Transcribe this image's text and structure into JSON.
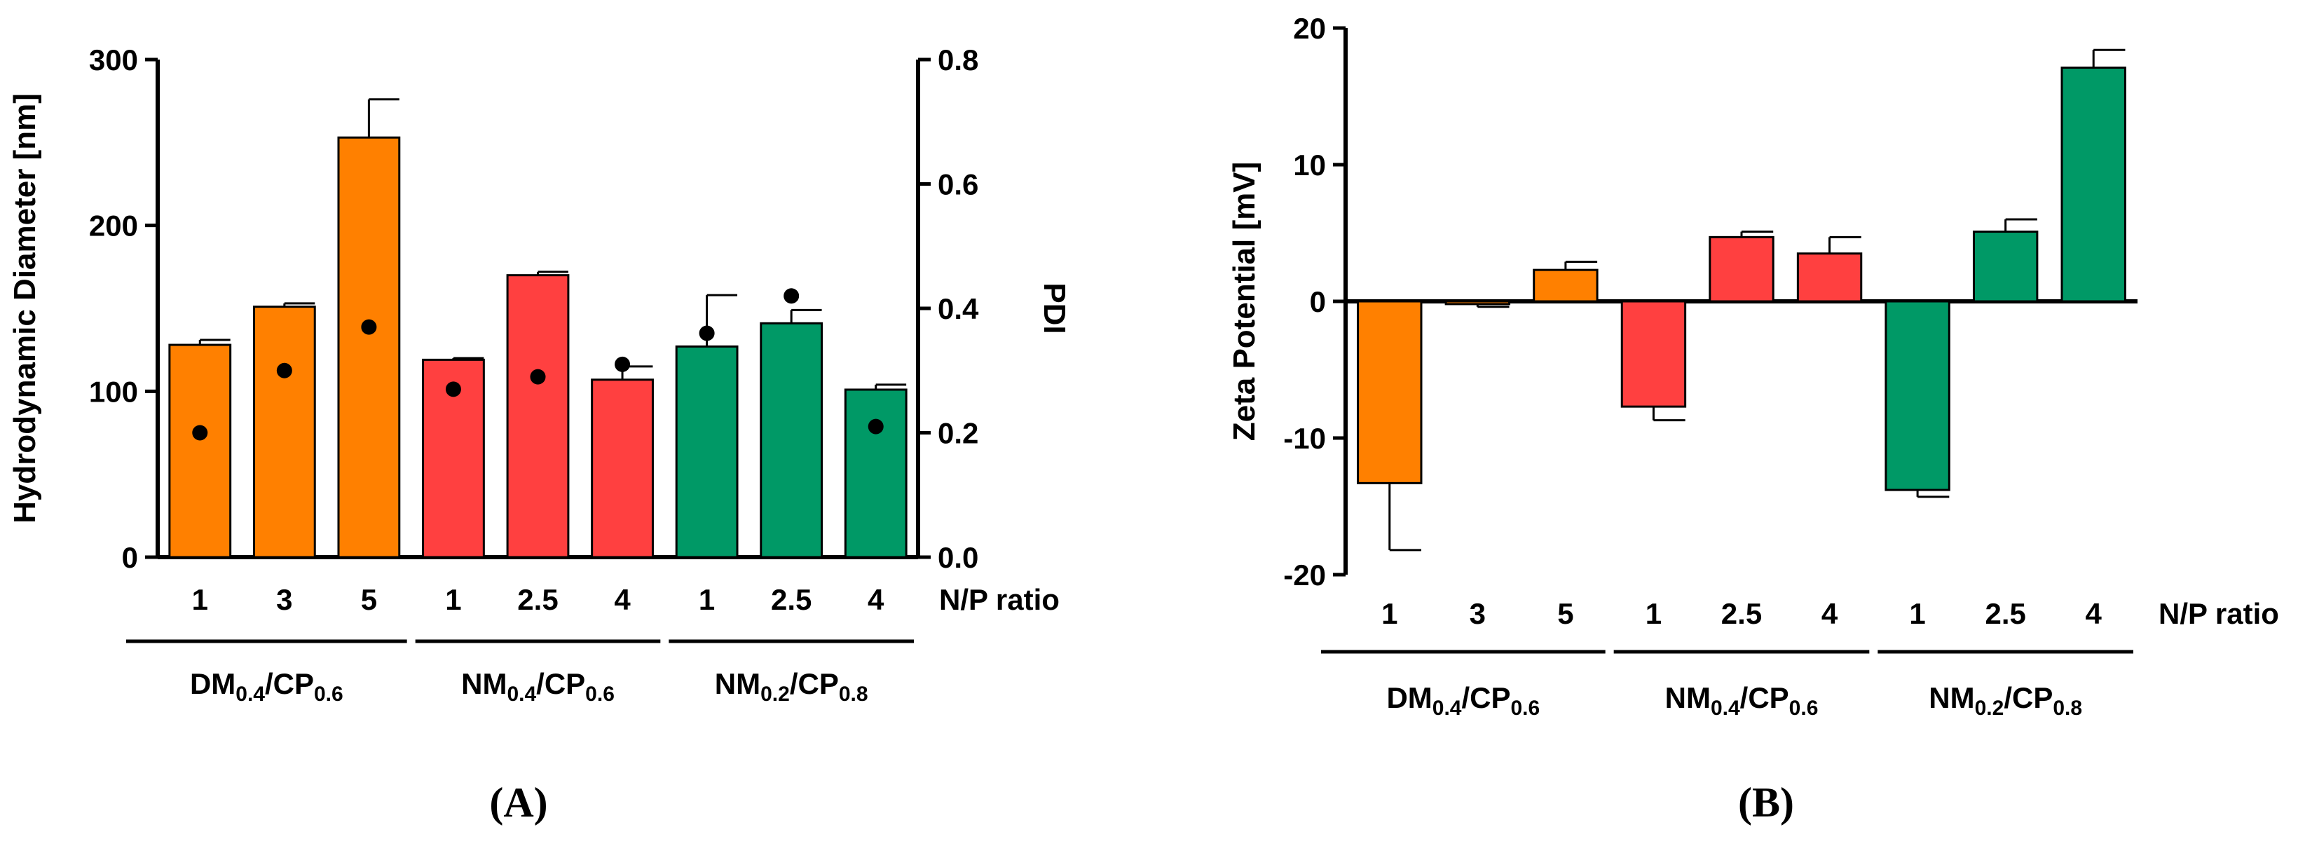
{
  "colors": {
    "orange": "#FF8000",
    "red": "#FF4040",
    "green": "#009966",
    "axis": "#000000"
  },
  "groups": [
    {
      "main1": "DM",
      "sub1": "0.4",
      "sep": "/",
      "main2": "CP",
      "sub2": "0.6"
    },
    {
      "main1": "NM",
      "sub1": "0.4",
      "sep": "/",
      "main2": "CP",
      "sub2": "0.6"
    },
    {
      "main1": "NM",
      "sub1": "0.2",
      "sep": "/",
      "main2": "CP",
      "sub2": "0.8"
    }
  ],
  "chart_data": [
    {
      "type": "bar",
      "panel_label": "(A)",
      "categories": [
        "1",
        "3",
        "5",
        "1",
        "2.5",
        "4",
        "1",
        "2.5",
        "4"
      ],
      "category_groups": [
        0,
        0,
        0,
        1,
        1,
        1,
        2,
        2,
        2
      ],
      "bar_colors": [
        "orange",
        "orange",
        "orange",
        "red",
        "red",
        "red",
        "green",
        "green",
        "green"
      ],
      "series": [
        {
          "name": "Hydrodynamic Diameter",
          "axis": "left",
          "style": "bar",
          "values": [
            128,
            151,
            253,
            119,
            170,
            107,
            127,
            141,
            101
          ],
          "errors": [
            3,
            2,
            23,
            1,
            2,
            8,
            31,
            8,
            3
          ]
        },
        {
          "name": "PDI",
          "axis": "right",
          "style": "dot",
          "values": [
            0.2,
            0.3,
            0.37,
            0.27,
            0.29,
            0.31,
            0.36,
            0.42,
            0.21
          ]
        }
      ],
      "xlabel": "N/P ratio",
      "ylabel": "Hydrodynamic Diameter [nm]",
      "ylabel_right": "PDI",
      "ylim": [
        0,
        300
      ],
      "yticks": [
        0,
        100,
        200,
        300
      ],
      "ylim_right": [
        0.0,
        0.8
      ],
      "yticks_right": [
        "0.0",
        "0.2",
        "0.4",
        "0.6",
        "0.8"
      ]
    },
    {
      "type": "bar",
      "panel_label": "(B)",
      "categories": [
        "1",
        "3",
        "5",
        "1",
        "2.5",
        "4",
        "1",
        "2.5",
        "4"
      ],
      "category_groups": [
        0,
        0,
        0,
        1,
        1,
        1,
        2,
        2,
        2
      ],
      "bar_colors": [
        "orange",
        "orange",
        "orange",
        "red",
        "red",
        "red",
        "green",
        "green",
        "green"
      ],
      "series": [
        {
          "name": "Zeta Potential",
          "axis": "left",
          "style": "bar",
          "values": [
            -13.3,
            -0.2,
            2.3,
            -7.7,
            4.7,
            3.5,
            -13.8,
            5.1,
            17.1
          ],
          "errors": [
            4.9,
            0.2,
            0.6,
            1.0,
            0.4,
            1.2,
            0.5,
            0.9,
            1.3
          ]
        }
      ],
      "xlabel": "N/P ratio",
      "ylabel": "Zeta Potential [mV]",
      "ylim": [
        -20,
        20
      ],
      "yticks": [
        "-20",
        "-10",
        "0",
        "10",
        "20"
      ]
    }
  ]
}
